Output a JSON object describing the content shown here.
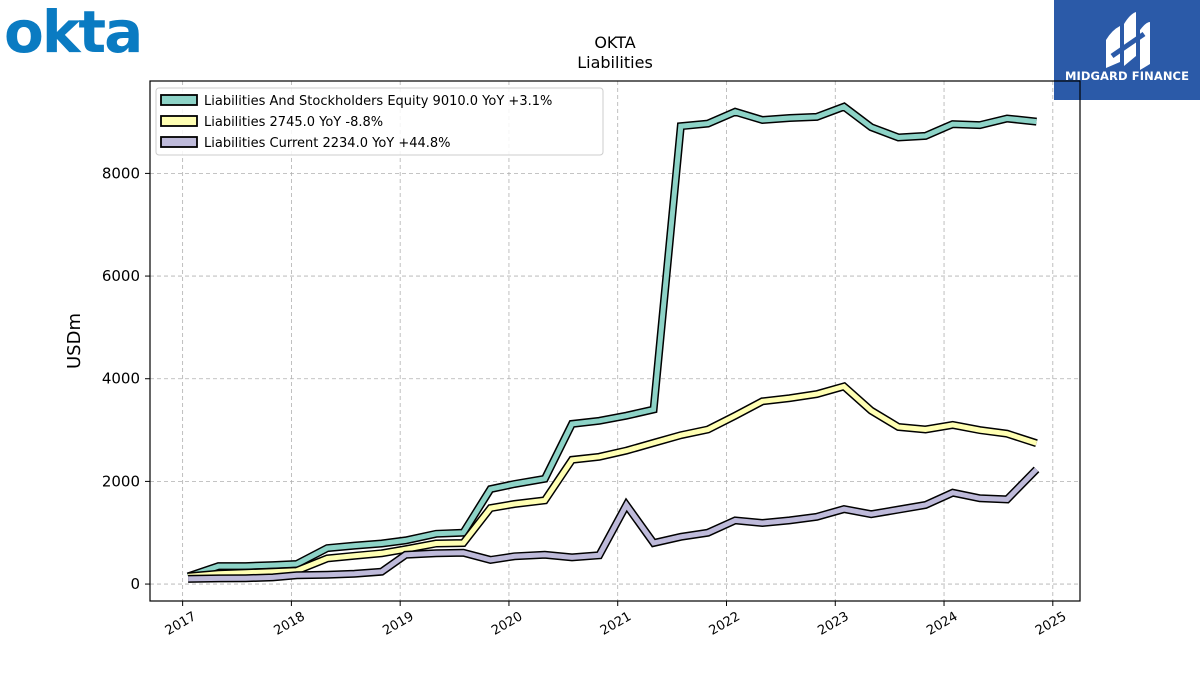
{
  "logos": {
    "left": "okta",
    "right_text": "MIDGARD FINANCE",
    "right_bg": "#2b5aa8",
    "left_color": "#0a7bc2"
  },
  "chart_data": {
    "type": "line",
    "title": "OKTA",
    "subtitle": "Liabilities",
    "xlabel": "",
    "ylabel": "USDm",
    "xlim": [
      2016.7,
      2025.25
    ],
    "ylim": [
      -330,
      9800
    ],
    "x_ticks": [
      2017,
      2018,
      2019,
      2020,
      2021,
      2022,
      2023,
      2024,
      2025
    ],
    "y_ticks": [
      0,
      2000,
      4000,
      6000,
      8000
    ],
    "grid": true,
    "legend_position": "top-left",
    "x": [
      2017.05,
      2017.33,
      2017.58,
      2017.83,
      2018.05,
      2018.33,
      2018.58,
      2018.83,
      2019.05,
      2019.33,
      2019.58,
      2019.83,
      2020.05,
      2020.33,
      2020.58,
      2020.83,
      2021.08,
      2021.33,
      2021.58,
      2021.83,
      2022.08,
      2022.33,
      2022.58,
      2022.83,
      2023.08,
      2023.33,
      2023.58,
      2023.83,
      2024.08,
      2024.33,
      2024.58,
      2024.85
    ],
    "series": [
      {
        "name": "Liabilities And Stockholders Equity",
        "legend_label": "Liabilities And Stockholders Equity  9010.0 YoY +3.1%",
        "color": "#8dd3c7",
        "values": [
          150,
          350,
          350,
          370,
          390,
          700,
          750,
          790,
          850,
          980,
          1000,
          1850,
          1950,
          2050,
          3120,
          3180,
          3280,
          3400,
          8920,
          8970,
          9200,
          9040,
          9080,
          9100,
          9300,
          8900,
          8700,
          8730,
          8960,
          8940,
          9070,
          9010
        ]
      },
      {
        "name": "Liabilities",
        "legend_label": "Liabilities  2745.0 YoY -8.8%",
        "color": "#ffffb3",
        "values": [
          150,
          200,
          220,
          240,
          260,
          500,
          550,
          600,
          680,
          790,
          800,
          1480,
          1560,
          1630,
          2420,
          2480,
          2600,
          2750,
          2900,
          3010,
          3280,
          3560,
          3620,
          3700,
          3850,
          3380,
          3060,
          3010,
          3100,
          3000,
          2930,
          2745
        ]
      },
      {
        "name": "Liabilities Current",
        "legend_label": "Liabilities Current  2234.0 YoY +44.8%",
        "color": "#bebada",
        "values": [
          100,
          110,
          115,
          130,
          170,
          180,
          200,
          240,
          570,
          600,
          610,
          470,
          540,
          570,
          520,
          560,
          1540,
          800,
          920,
          1000,
          1240,
          1190,
          1240,
          1310,
          1460,
          1360,
          1450,
          1540,
          1780,
          1670,
          1650,
          2234
        ]
      }
    ]
  }
}
